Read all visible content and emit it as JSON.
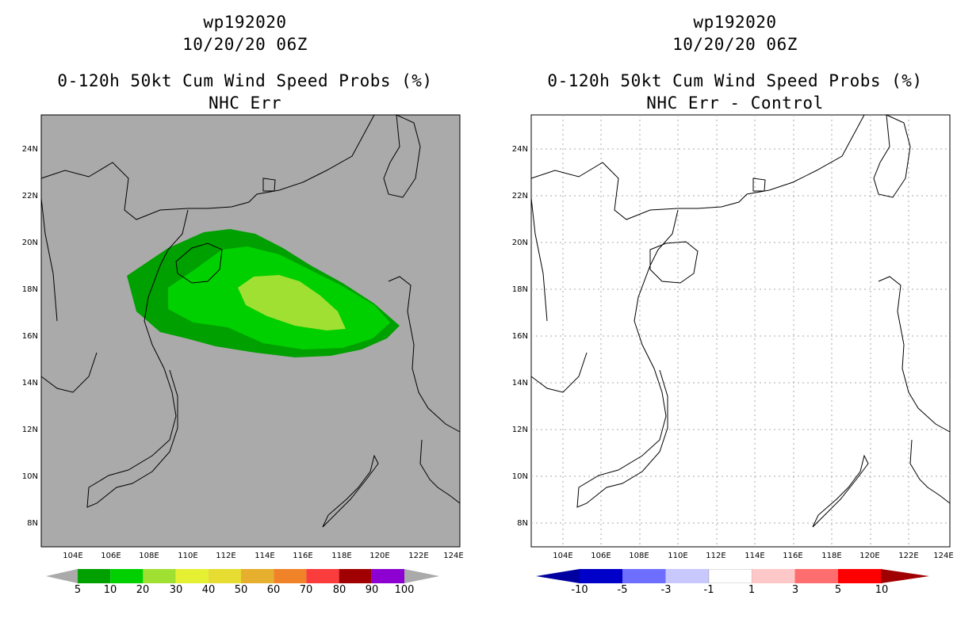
{
  "left_panel": {
    "storm_id": "wp192020",
    "datetime": "10/20/20 06Z",
    "product": "0-120h 50kt Cum Wind Speed Probs (%)",
    "subtitle": "NHC Err",
    "background_color": "#aaaaaa",
    "colorbar": {
      "labels": [
        "5",
        "10",
        "20",
        "30",
        "40",
        "50",
        "60",
        "70",
        "80",
        "90",
        "100"
      ],
      "colors": [
        "#00a000",
        "#00d000",
        "#a0e032",
        "#e6f032",
        "#e6dc32",
        "#e6af2d",
        "#f08228",
        "#fa3c3c",
        "#a00000",
        "#8c00d2"
      ],
      "end_color": "#aaaaaa"
    },
    "probability_zones": [
      {
        "level": "5-10%",
        "color": "#00a000"
      },
      {
        "level": "10-20%",
        "color": "#00d000"
      },
      {
        "level": "20-30%",
        "color": "#a0e032"
      }
    ]
  },
  "right_panel": {
    "storm_id": "wp192020",
    "datetime": "10/20/20 06Z",
    "product": "0-120h 50kt Cum Wind Speed Probs (%)",
    "subtitle": "NHC Err - Control",
    "background_color": "#ffffff",
    "colorbar": {
      "labels": [
        "-10",
        "-5",
        "-3",
        "-1",
        "1",
        "3",
        "5",
        "10"
      ],
      "colors": [
        "#0000c8",
        "#6e6eff",
        "#c8c8ff",
        "#ffffff",
        "#ffc8c8",
        "#ff6e6e",
        "#ff0000"
      ],
      "start_color": "#0000a0",
      "end_color": "#a00000"
    }
  },
  "axes": {
    "lat_labels": [
      "24N",
      "22N",
      "20N",
      "18N",
      "16N",
      "14N",
      "12N",
      "10N",
      "8N"
    ],
    "lon_labels": [
      "104E",
      "106E",
      "108E",
      "110E",
      "112E",
      "114E",
      "116E",
      "118E",
      "120E",
      "122E",
      "124E"
    ]
  }
}
